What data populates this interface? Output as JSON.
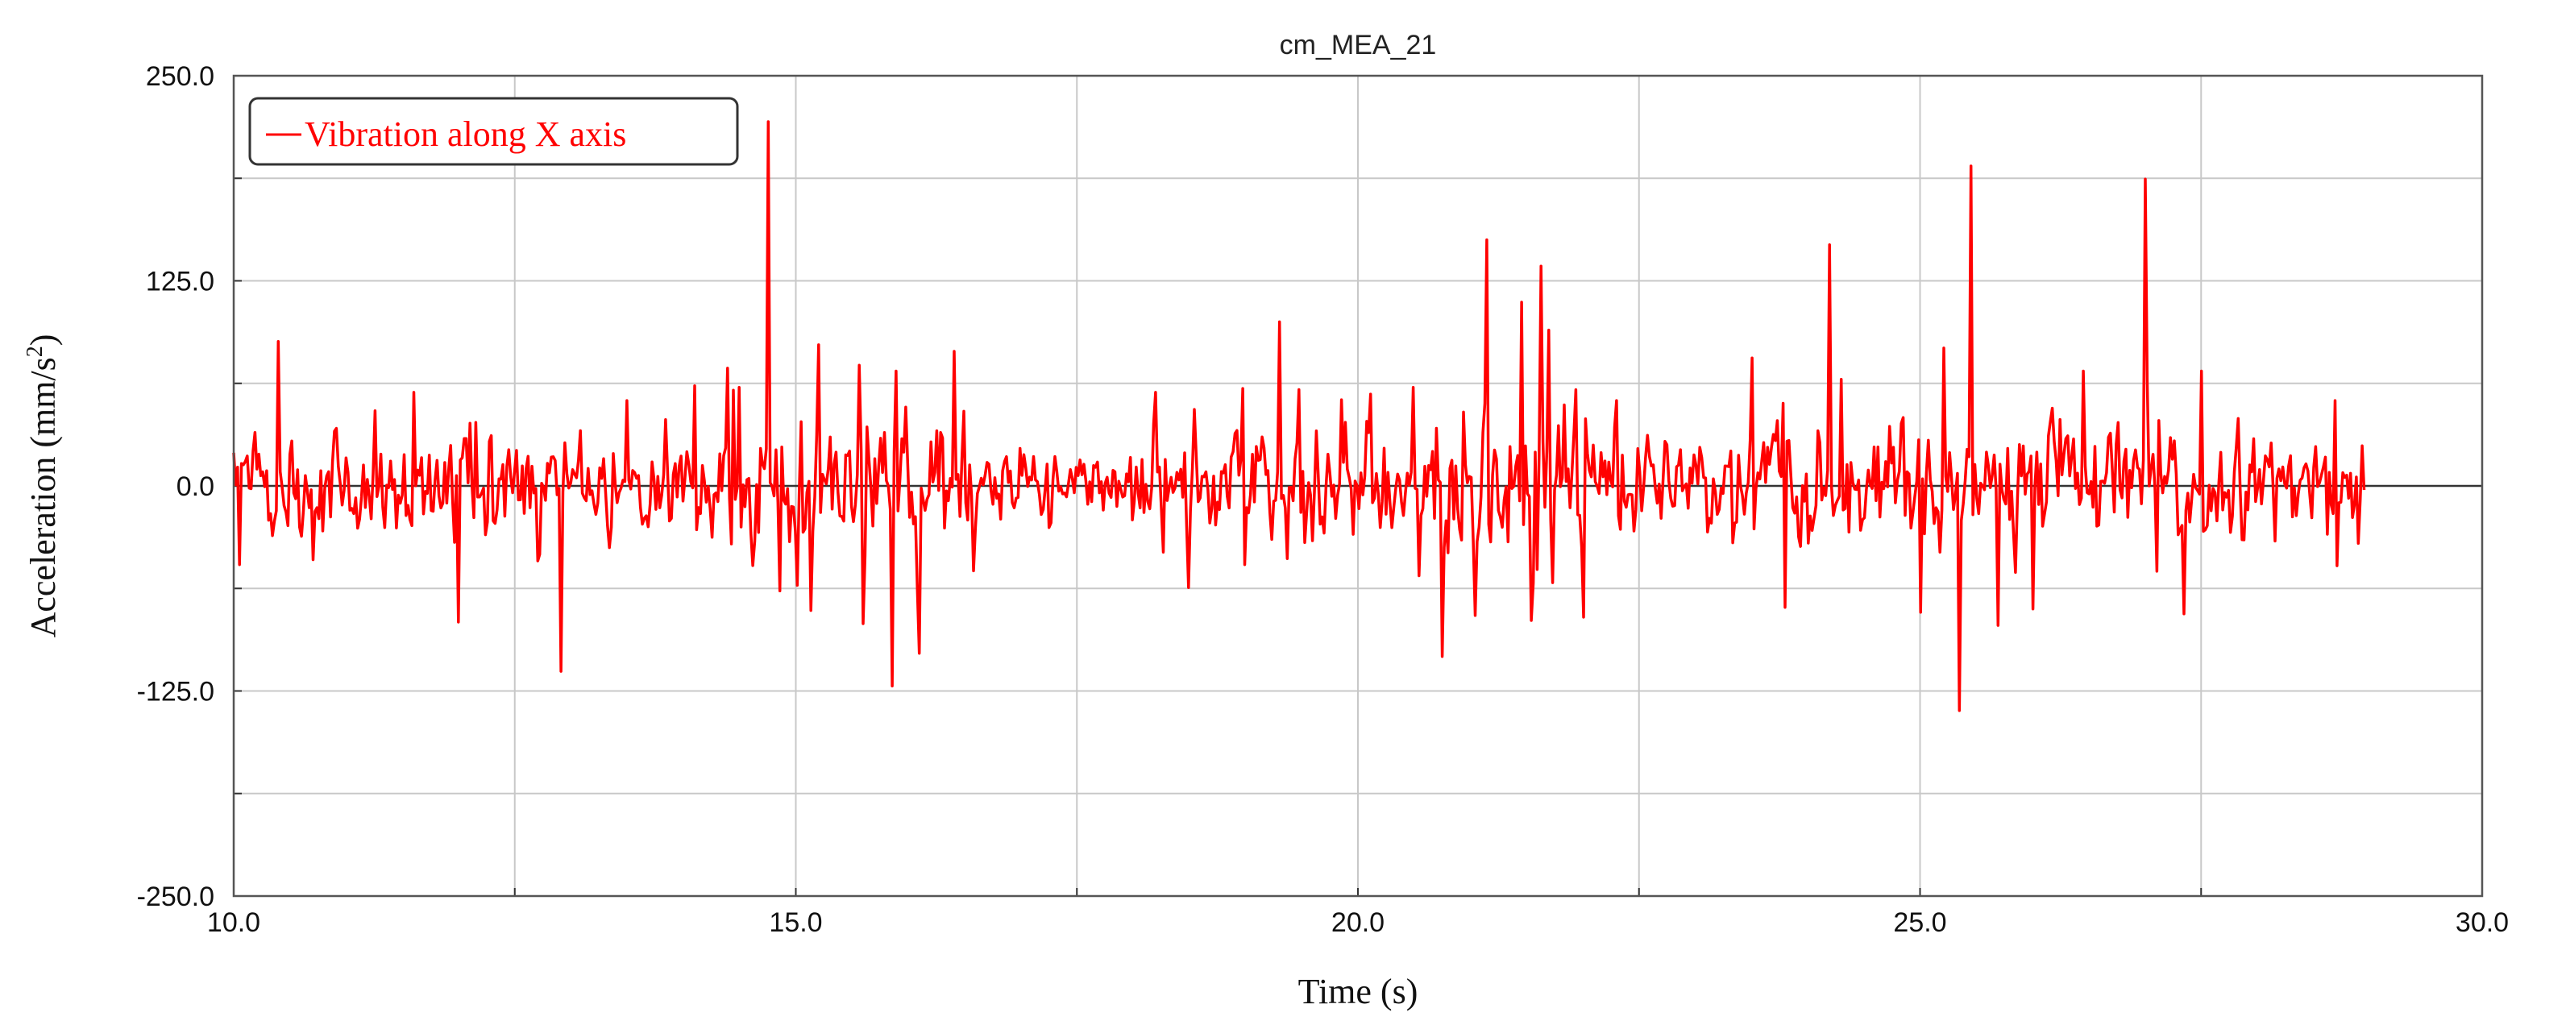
{
  "chart_data": {
    "type": "line",
    "title": "cm_MEA_21",
    "xlabel": "Time (s)",
    "ylabel_main": "Acceleration (mm/s",
    "ylabel_sup": "2",
    "ylabel_close": ")",
    "xlim": [
      10.0,
      30.0
    ],
    "ylim": [
      -250.0,
      250.0
    ],
    "x_ticks": [
      10.0,
      15.0,
      20.0,
      25.0,
      30.0
    ],
    "x_tick_labels": [
      "10.0",
      "15.0",
      "20.0",
      "25.0",
      "30.0"
    ],
    "x_minor_ticks": [
      12.5,
      17.5,
      22.5,
      27.5
    ],
    "y_ticks": [
      250.0,
      125.0,
      0.0,
      -125.0,
      -250.0
    ],
    "y_tick_labels": [
      "250.0",
      "125.0",
      "0.0",
      "-125.0",
      "-250.0"
    ],
    "y_minor_ticks": [
      187.5,
      62.5,
      -62.5,
      -187.5
    ],
    "grid": true,
    "legend_position": "top-left",
    "series": [
      {
        "name": "Vibration along X axis",
        "color": "#ff0000",
        "x_start": 10.0,
        "x_end": 28.95,
        "peaks": [
          {
            "x": 10.05,
            "y": -48
          },
          {
            "x": 10.4,
            "y": 88
          },
          {
            "x": 10.7,
            "y": -45
          },
          {
            "x": 11.6,
            "y": 57
          },
          {
            "x": 12.0,
            "y": -83
          },
          {
            "x": 12.92,
            "y": -113
          },
          {
            "x": 13.5,
            "y": 52
          },
          {
            "x": 14.1,
            "y": 61
          },
          {
            "x": 14.5,
            "y": 60
          },
          {
            "x": 14.75,
            "y": 222
          },
          {
            "x": 14.85,
            "y": -64
          },
          {
            "x": 15.2,
            "y": 86
          },
          {
            "x": 15.6,
            "y": -84
          },
          {
            "x": 15.85,
            "y": -122
          },
          {
            "x": 15.9,
            "y": 70
          },
          {
            "x": 16.1,
            "y": -102
          },
          {
            "x": 16.4,
            "y": 82
          },
          {
            "x": 18.2,
            "y": 57
          },
          {
            "x": 18.5,
            "y": -62
          },
          {
            "x": 19.0,
            "y": -48
          },
          {
            "x": 19.3,
            "y": 100
          },
          {
            "x": 20.5,
            "y": 60
          },
          {
            "x": 20.75,
            "y": -104
          },
          {
            "x": 21.05,
            "y": -79
          },
          {
            "x": 21.15,
            "y": 150
          },
          {
            "x": 21.45,
            "y": 112
          },
          {
            "x": 21.55,
            "y": -82
          },
          {
            "x": 21.62,
            "y": 134
          },
          {
            "x": 21.7,
            "y": 95
          },
          {
            "x": 22.0,
            "y": -80
          },
          {
            "x": 22.3,
            "y": 52
          },
          {
            "x": 23.5,
            "y": 78
          },
          {
            "x": 23.8,
            "y": -74
          },
          {
            "x": 24.2,
            "y": 147
          },
          {
            "x": 24.3,
            "y": 65
          },
          {
            "x": 25.0,
            "y": -77
          },
          {
            "x": 25.35,
            "y": -137
          },
          {
            "x": 25.45,
            "y": 195
          },
          {
            "x": 25.7,
            "y": -85
          },
          {
            "x": 26.0,
            "y": -75
          },
          {
            "x": 26.45,
            "y": 70
          },
          {
            "x": 27.0,
            "y": 187
          },
          {
            "x": 27.1,
            "y": -52
          },
          {
            "x": 27.35,
            "y": -78
          },
          {
            "x": 27.5,
            "y": 70
          },
          {
            "x": 28.7,
            "y": 52
          },
          {
            "x": 28.9,
            "y": -35
          }
        ]
      }
    ]
  }
}
